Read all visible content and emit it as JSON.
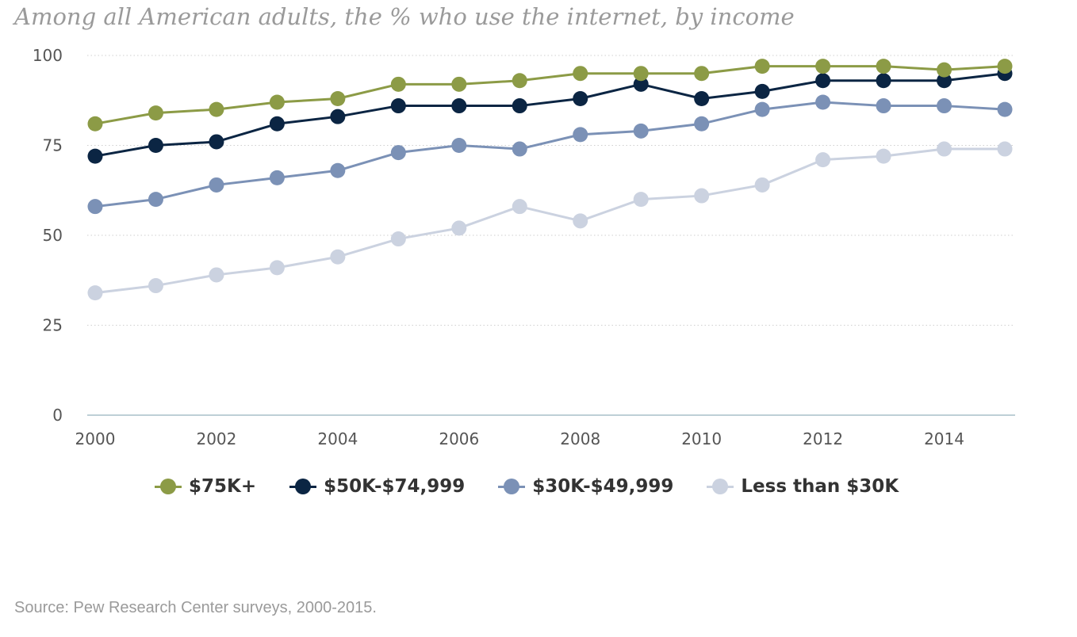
{
  "title": "Among all American adults, the % who use the internet, by income",
  "source": "Source: Pew Research Center surveys, 2000-2015.",
  "chart_data": {
    "type": "line",
    "title": "Among all American adults, the % who use the internet, by income",
    "xlabel": "",
    "ylabel": "",
    "x": [
      2000,
      2001,
      2002,
      2003,
      2004,
      2005,
      2006,
      2007,
      2008,
      2009,
      2010,
      2011,
      2012,
      2013,
      2014,
      2015
    ],
    "x_tick_labels": [
      "2000",
      "2002",
      "2004",
      "2006",
      "2008",
      "2010",
      "2012",
      "2014"
    ],
    "y_tick_labels": [
      "0",
      "25",
      "50",
      "75",
      "100"
    ],
    "xlim": [
      2000,
      2015
    ],
    "ylim": [
      0,
      100
    ],
    "grid": "horizontal dotted",
    "legend_position": "bottom",
    "series": [
      {
        "name": "$75K+",
        "color": "#8c9b46",
        "values": [
          81,
          84,
          85,
          87,
          88,
          92,
          92,
          93,
          95,
          95,
          95,
          97,
          97,
          97,
          96,
          97
        ]
      },
      {
        "name": "$50K-$74,999",
        "color": "#0b2543",
        "values": [
          72,
          75,
          76,
          81,
          83,
          86,
          86,
          86,
          88,
          92,
          88,
          90,
          93,
          93,
          93,
          95
        ]
      },
      {
        "name": "$30K-$49,999",
        "color": "#7b91b6",
        "values": [
          58,
          60,
          64,
          66,
          68,
          73,
          75,
          74,
          78,
          79,
          81,
          85,
          87,
          86,
          86,
          85
        ]
      },
      {
        "name": "Less than $30K",
        "color": "#cbd2e0",
        "values": [
          34,
          36,
          39,
          41,
          44,
          49,
          52,
          58,
          54,
          60,
          61,
          64,
          71,
          72,
          74,
          74
        ]
      }
    ]
  }
}
